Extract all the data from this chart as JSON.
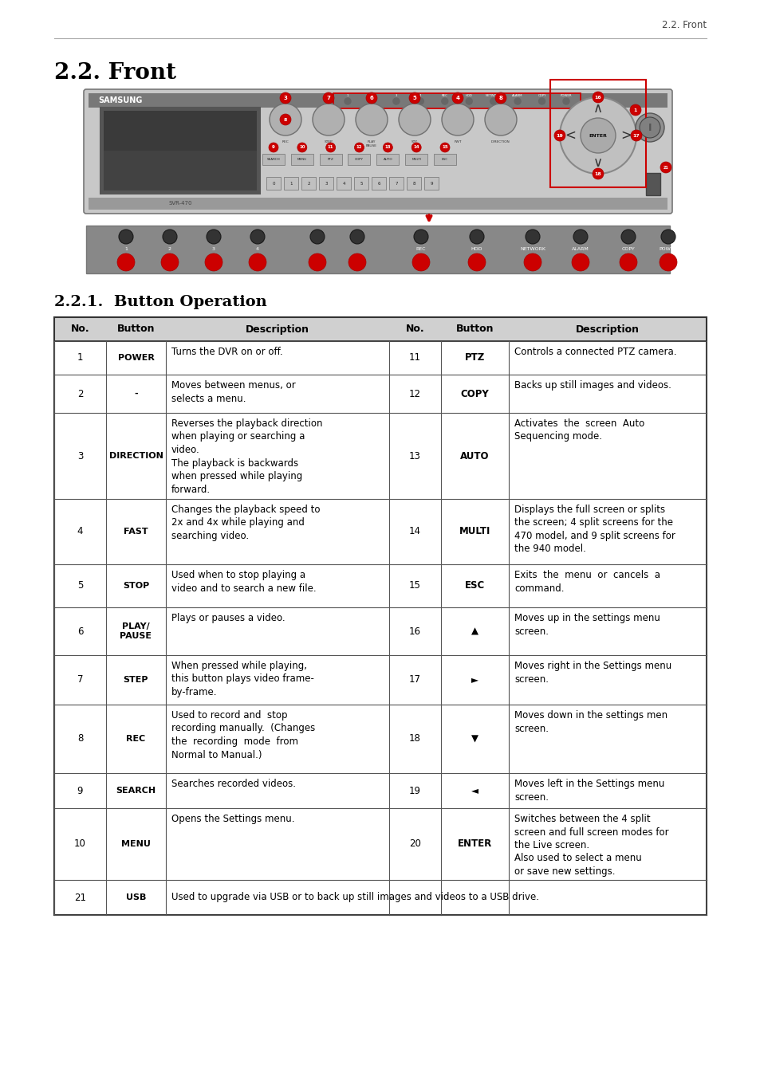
{
  "page_header": "2.2. Front",
  "section_title": "2.2. Front",
  "subsection_title": "2.2.1.  Button Operation",
  "table_headers": [
    "No.",
    "Button",
    "Description",
    "No.",
    "Button",
    "Description"
  ],
  "header_bg": "#d0d0d0",
  "border_color": "#555555",
  "text_color": "#000000",
  "rows": [
    {
      "no_l": "1",
      "btn_l": "POWER",
      "desc_l": "Turns the DVR on or off.",
      "no_r": "11",
      "btn_r": "PTZ",
      "desc_r": "Controls a connected PTZ camera."
    },
    {
      "no_l": "2",
      "btn_l": "-",
      "desc_l": "Moves between menus, or\nselects a menu.",
      "no_r": "12",
      "btn_r": "COPY",
      "desc_r": "Backs up still images and videos."
    },
    {
      "no_l": "3",
      "btn_l": "DIRECTION",
      "desc_l": "Reverses the playback direction\nwhen playing or searching a\nvideo.\nThe playback is backwards\nwhen pressed while playing\nforward.",
      "no_r": "13",
      "btn_r": "AUTO",
      "desc_r": "Activates  the  screen  Auto\nSequencing mode."
    },
    {
      "no_l": "4",
      "btn_l": "FAST",
      "desc_l": "Changes the playback speed to\n2x and 4x while playing and\nsearching video.",
      "no_r": "14",
      "btn_r": "MULTI",
      "desc_r": "Displays the full screen or splits\nthe screen; 4 split screens for the\n470 model, and 9 split screens for\nthe 940 model."
    },
    {
      "no_l": "5",
      "btn_l": "STOP",
      "desc_l": "Used when to stop playing a\nvideo and to search a new file.",
      "no_r": "15",
      "btn_r": "ESC",
      "desc_r": "Exits  the  menu  or  cancels  a\ncommand."
    },
    {
      "no_l": "6",
      "btn_l": "PLAY/\nPAUSE",
      "desc_l": "Plays or pauses a video.",
      "no_r": "16",
      "btn_r": "▲",
      "desc_r": "Moves up in the settings menu\nscreen."
    },
    {
      "no_l": "7",
      "btn_l": "STEP",
      "desc_l": "When pressed while playing,\nthis button plays video frame-\nby-frame.",
      "no_r": "17",
      "btn_r": "►",
      "desc_r": "Moves right in the Settings menu\nscreen."
    },
    {
      "no_l": "8",
      "btn_l": "REC",
      "desc_l": "Used to record and  stop\nrecording manually.  (Changes\nthe  recording  mode  from\nNormal to Manual.)",
      "no_r": "18",
      "btn_r": "▼",
      "desc_r": "Moves down in the settings men\nscreen."
    },
    {
      "no_l": "9",
      "btn_l": "SEARCH",
      "desc_l": "Searches recorded videos.",
      "no_r": "19",
      "btn_r": "◄",
      "desc_r": "Moves left in the Settings menu\nscreen."
    },
    {
      "no_l": "10",
      "btn_l": "MENU",
      "desc_l": "Opens the Settings menu.",
      "no_r": "20",
      "btn_r": "ENTER",
      "desc_r": "Switches between the 4 split\nscreen and full screen modes for\nthe Live screen.\nAlso used to select a menu\nor save new settings."
    },
    {
      "no_l": "21",
      "btn_l": "USB",
      "desc_l": "Used to upgrade via USB or to back up still images and videos to a USB drive.",
      "no_r": "",
      "btn_r": "",
      "desc_r": "",
      "span": true
    }
  ],
  "background_color": "#ffffff"
}
